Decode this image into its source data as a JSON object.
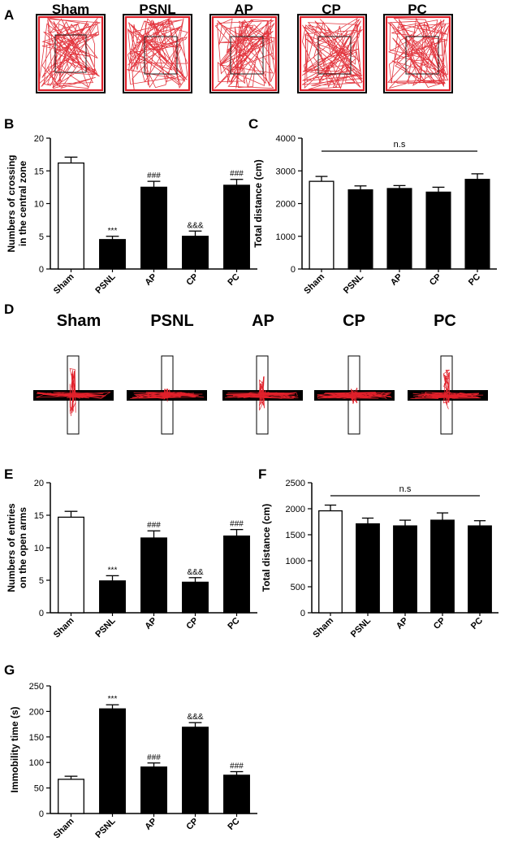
{
  "panels": {
    "A": {
      "letter": "A",
      "groups": [
        "Sham",
        "PSNL",
        "AP",
        "CP",
        "PC"
      ],
      "icon": "open-field-track"
    },
    "D": {
      "letter": "D",
      "groups": [
        "Sham",
        "PSNL",
        "AP",
        "CP",
        "PC"
      ],
      "icon": "elevated-plus-maze-track"
    }
  },
  "colors": {
    "track": "#e0202a",
    "bar_sham": "#ffffff",
    "bar_treated": "#000000",
    "axis": "#000000"
  },
  "chart_data": [
    {
      "id": "B",
      "letter": "B",
      "type": "bar",
      "categories": [
        "Sham",
        "PSNL",
        "AP",
        "CP",
        "PC"
      ],
      "values": [
        16.2,
        4.5,
        12.5,
        5.0,
        12.8
      ],
      "errors": [
        0.9,
        0.5,
        0.9,
        0.8,
        0.9
      ],
      "annotations": [
        "",
        "***",
        "###",
        "&&&",
        "###"
      ],
      "ylabel_lines": [
        "Numbers of crossing",
        "in the central zone"
      ],
      "ylim": [
        0,
        20
      ],
      "yticks": [
        0,
        5,
        10,
        15,
        20
      ],
      "ns_label": ""
    },
    {
      "id": "C",
      "letter": "C",
      "type": "bar",
      "categories": [
        "Sham",
        "PSNL",
        "AP",
        "CP",
        "PC"
      ],
      "values": [
        2680,
        2420,
        2460,
        2350,
        2740
      ],
      "errors": [
        150,
        120,
        90,
        150,
        170
      ],
      "annotations": [
        "",
        "",
        "",
        "",
        ""
      ],
      "ylabel_lines": [
        "Total distance (cm)"
      ],
      "ylim": [
        0,
        4000
      ],
      "yticks": [
        0,
        1000,
        2000,
        3000,
        4000
      ],
      "ns_label": "n.s"
    },
    {
      "id": "E",
      "letter": "E",
      "type": "bar",
      "categories": [
        "Sham",
        "PSNL",
        "AP",
        "CP",
        "PC"
      ],
      "values": [
        14.7,
        4.9,
        11.5,
        4.7,
        11.8
      ],
      "errors": [
        0.9,
        0.8,
        1.1,
        0.7,
        1.0
      ],
      "annotations": [
        "",
        "***",
        "###",
        "&&&",
        "###"
      ],
      "ylabel_lines": [
        "Numbers of entries",
        "on the open arms"
      ],
      "ylim": [
        0,
        20
      ],
      "yticks": [
        0,
        5,
        10,
        15,
        20
      ],
      "ns_label": ""
    },
    {
      "id": "F",
      "letter": "F",
      "type": "bar",
      "categories": [
        "Sham",
        "PSNL",
        "AP",
        "CP",
        "PC"
      ],
      "values": [
        1960,
        1710,
        1670,
        1780,
        1670
      ],
      "errors": [
        110,
        110,
        110,
        140,
        100
      ],
      "annotations": [
        "",
        "",
        "",
        "",
        ""
      ],
      "ylabel_lines": [
        "Total distance (cm)"
      ],
      "ylim": [
        0,
        2500
      ],
      "yticks": [
        0,
        500,
        1000,
        1500,
        2000,
        2500
      ],
      "ns_label": "n.s"
    },
    {
      "id": "G",
      "letter": "G",
      "type": "bar",
      "categories": [
        "Sham",
        "PSNL",
        "AP",
        "CP",
        "PC"
      ],
      "values": [
        67,
        205,
        91,
        169,
        75
      ],
      "errors": [
        6,
        8,
        8,
        9,
        7
      ],
      "annotations": [
        "",
        "***",
        "###",
        "&&&",
        "###"
      ],
      "ylabel_lines": [
        "Immobility time (s)"
      ],
      "ylim": [
        0,
        250
      ],
      "yticks": [
        0,
        50,
        100,
        150,
        200,
        250
      ],
      "ns_label": ""
    }
  ]
}
